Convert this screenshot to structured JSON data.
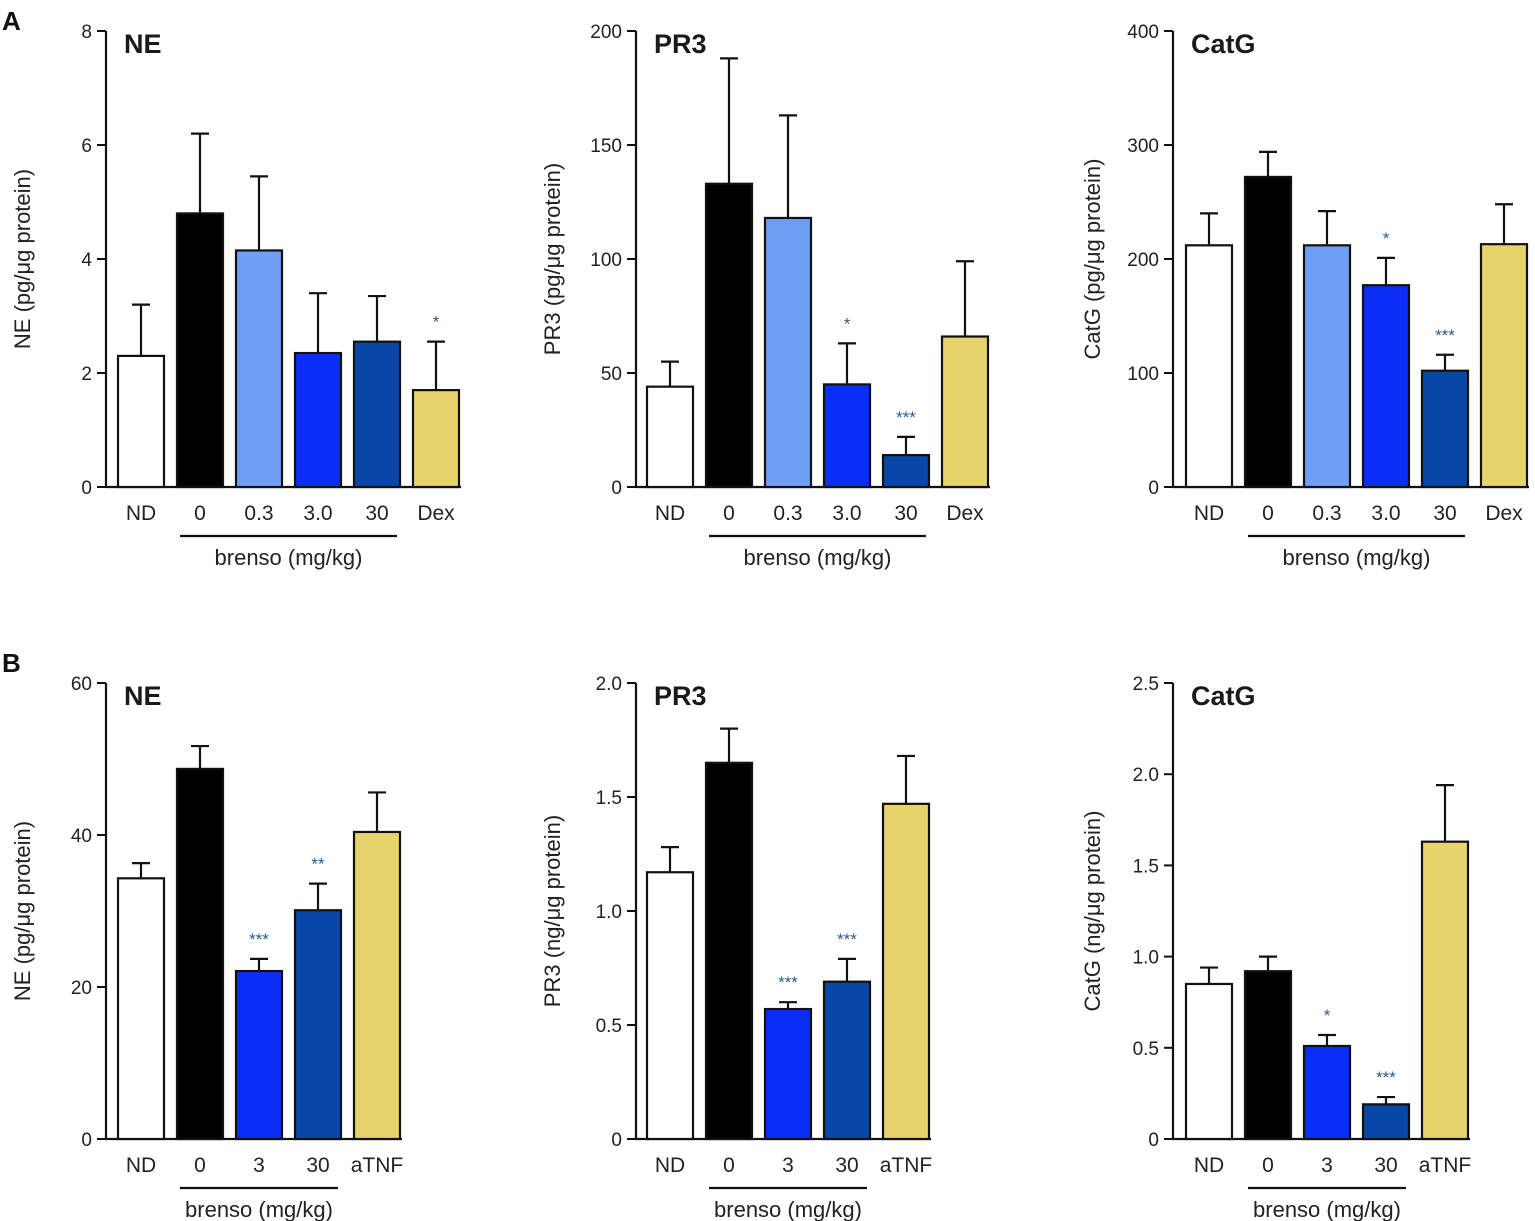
{
  "panel_labels": [
    "A",
    "B"
  ],
  "chart_data": [
    {
      "panel": "A",
      "type": "bar",
      "title": "NE",
      "ylabel": "NE (pg/μg protein)",
      "ylim": [
        0,
        8
      ],
      "yticks": [
        "0",
        "2",
        "4",
        "6",
        "8"
      ],
      "categories": [
        "ND",
        "0",
        "0.3",
        "3.0",
        "30",
        "Dex"
      ],
      "values": [
        2.3,
        4.8,
        4.15,
        2.35,
        2.55,
        1.7
      ],
      "errors": [
        0.9,
        1.4,
        1.3,
        1.05,
        0.8,
        0.85
      ],
      "significance": [
        "",
        "",
        "",
        "",
        "",
        "*"
      ],
      "colors": [
        "#ffffff",
        "#000000",
        "#6e9ff5",
        "#0a2ef5",
        "#0847a8",
        "#e7d36c"
      ],
      "group_label": "brenso (mg/kg)",
      "group_range": [
        1,
        4
      ]
    },
    {
      "panel": "A",
      "type": "bar",
      "title": "PR3",
      "ylabel": "PR3 (pg/μg protein)",
      "ylim": [
        0,
        200
      ],
      "yticks": [
        "0",
        "50",
        "100",
        "150",
        "200"
      ],
      "categories": [
        "ND",
        "0",
        "0.3",
        "3.0",
        "30",
        "Dex"
      ],
      "values": [
        44,
        133,
        118,
        45,
        14,
        66
      ],
      "errors": [
        11,
        55,
        45,
        18,
        8,
        33
      ],
      "significance": [
        "",
        "",
        "",
        "*",
        "***",
        ""
      ],
      "colors": [
        "#ffffff",
        "#000000",
        "#6e9ff5",
        "#0a2ef5",
        "#0847a8",
        "#e7d36c"
      ],
      "group_label": "brenso (mg/kg)",
      "group_range": [
        1,
        4
      ]
    },
    {
      "panel": "A",
      "type": "bar",
      "title": "CatG",
      "ylabel": "CatG (pg/μg protein)",
      "ylim": [
        0,
        400
      ],
      "yticks": [
        "0",
        "100",
        "200",
        "300",
        "400"
      ],
      "categories": [
        "ND",
        "0",
        "0.3",
        "3.0",
        "30",
        "Dex"
      ],
      "values": [
        212,
        272,
        212,
        177,
        102,
        213
      ],
      "errors": [
        28,
        22,
        30,
        24,
        14,
        35
      ],
      "significance": [
        "",
        "",
        "",
        "*",
        "***",
        ""
      ],
      "colors": [
        "#ffffff",
        "#000000",
        "#6e9ff5",
        "#0a2ef5",
        "#0847a8",
        "#e7d36c"
      ],
      "group_label": "brenso (mg/kg)",
      "group_range": [
        1,
        4
      ]
    },
    {
      "panel": "B",
      "type": "bar",
      "title": "NE",
      "ylabel": "NE (pg/μg protein)",
      "ylim": [
        0,
        60
      ],
      "yticks": [
        "0",
        "20",
        "40",
        "60"
      ],
      "categories": [
        "ND",
        "0",
        "3",
        "30",
        "aTNF"
      ],
      "values": [
        34.3,
        48.7,
        22.1,
        30.1,
        40.4
      ],
      "errors": [
        2.0,
        3.0,
        1.6,
        3.5,
        5.2
      ],
      "significance": [
        "",
        "",
        "***",
        "**",
        ""
      ],
      "colors": [
        "#ffffff",
        "#000000",
        "#0a2ef5",
        "#0847a8",
        "#e7d36c"
      ],
      "group_label": "brenso (mg/kg)",
      "group_range": [
        1,
        3
      ]
    },
    {
      "panel": "B",
      "type": "bar",
      "title": "PR3",
      "ylabel": "PR3 (ng/μg protein)",
      "ylim": [
        0,
        2.0
      ],
      "yticks": [
        "0",
        "0.5",
        "1.0",
        "1.5",
        "2.0"
      ],
      "categories": [
        "ND",
        "0",
        "3",
        "30",
        "aTNF"
      ],
      "values": [
        1.17,
        1.65,
        0.57,
        0.69,
        1.47
      ],
      "errors": [
        0.11,
        0.15,
        0.03,
        0.1,
        0.21
      ],
      "significance": [
        "",
        "",
        "***",
        "***",
        ""
      ],
      "colors": [
        "#ffffff",
        "#000000",
        "#0a2ef5",
        "#0847a8",
        "#e7d36c"
      ],
      "group_label": "brenso (mg/kg)",
      "group_range": [
        1,
        3
      ]
    },
    {
      "panel": "B",
      "type": "bar",
      "title": "CatG",
      "ylabel": "CatG (ng/μg protein)",
      "ylim": [
        0,
        2.5
      ],
      "yticks": [
        "0",
        "0.5",
        "1.0",
        "1.5",
        "2.0",
        "2.5"
      ],
      "categories": [
        "ND",
        "0",
        "3",
        "30",
        "aTNF"
      ],
      "values": [
        0.85,
        0.92,
        0.51,
        0.19,
        1.63
      ],
      "errors": [
        0.09,
        0.08,
        0.06,
        0.04,
        0.31
      ],
      "significance": [
        "",
        "",
        "*",
        "***",
        ""
      ],
      "colors": [
        "#ffffff",
        "#000000",
        "#0a2ef5",
        "#0847a8",
        "#e7d36c"
      ],
      "group_label": "brenso (mg/kg)",
      "group_range": [
        1,
        3
      ]
    }
  ]
}
